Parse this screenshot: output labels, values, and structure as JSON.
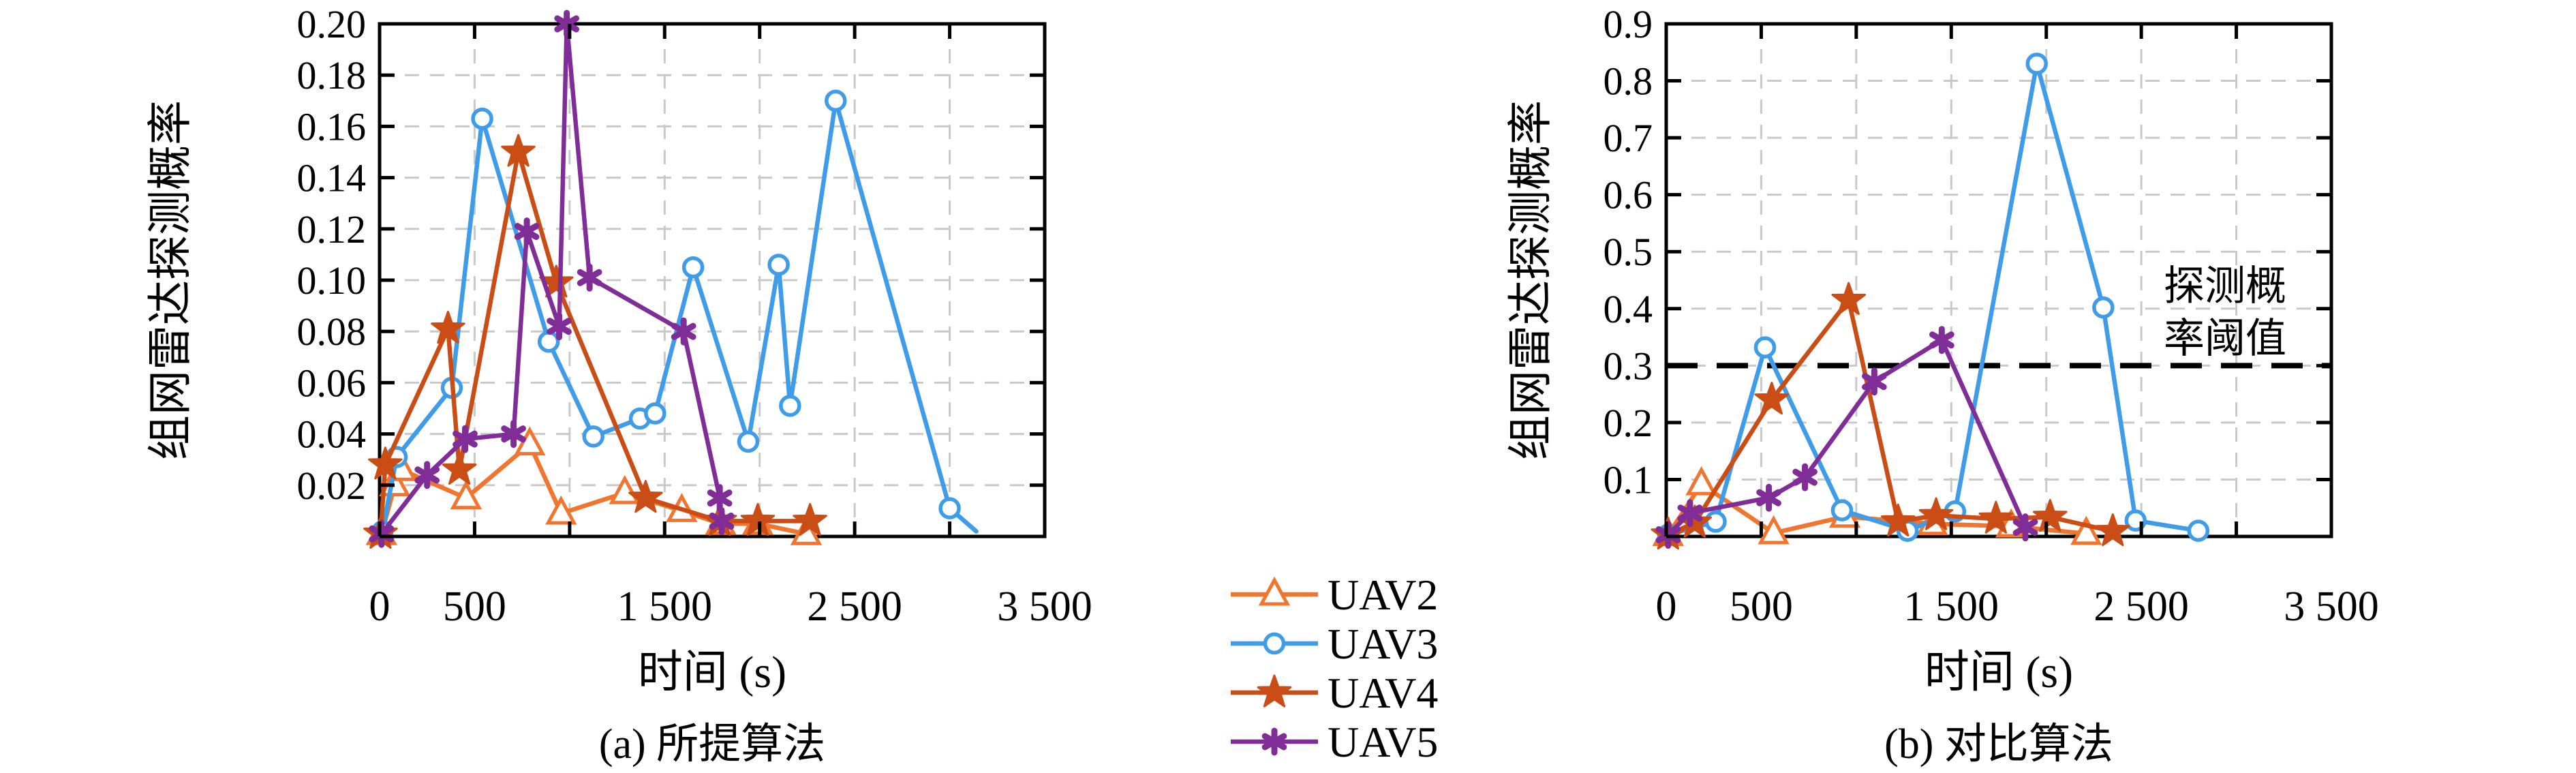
{
  "colors": {
    "UAV2": "#F2752F",
    "UAV3": "#3E9CE9",
    "UAV4": "#CB4D16",
    "UAV5": "#802D97",
    "grid": "#c9c9c9",
    "axis": "#000000",
    "threshold": "#000000"
  },
  "markers": {
    "UAV2": "triangle",
    "UAV3": "circle",
    "UAV4": "star",
    "UAV5": "asterisk"
  },
  "legend": {
    "entries": [
      {
        "label": "UAV2"
      },
      {
        "label": "UAV3"
      },
      {
        "label": "UAV4"
      },
      {
        "label": "UAV5"
      }
    ]
  },
  "chart_data": [
    {
      "id": "a",
      "type": "line",
      "caption": "(a) 所提算法",
      "xlabel": "时间 (s)",
      "ylabel": "组网雷达探测概率",
      "xlim": [
        0,
        3500
      ],
      "ylim": [
        0,
        0.2
      ],
      "grid": true,
      "xticks": [
        {
          "v": 0,
          "label": "0"
        },
        {
          "v": 500,
          "label": "500"
        },
        {
          "v": 1000,
          "label": ""
        },
        {
          "v": 1500,
          "label": "1 500"
        },
        {
          "v": 2000,
          "label": ""
        },
        {
          "v": 2500,
          "label": "2 500"
        },
        {
          "v": 3000,
          "label": ""
        },
        {
          "v": 3500,
          "label": "3 500"
        }
      ],
      "yticks": [
        {
          "v": 0,
          "label": ""
        },
        {
          "v": 0.02,
          "label": "0.02"
        },
        {
          "v": 0.04,
          "label": "0.04"
        },
        {
          "v": 0.06,
          "label": "0.06"
        },
        {
          "v": 0.08,
          "label": "0.08"
        },
        {
          "v": 0.1,
          "label": "0.10"
        },
        {
          "v": 0.12,
          "label": "0.12"
        },
        {
          "v": 0.14,
          "label": "0.14"
        },
        {
          "v": 0.16,
          "label": "0.16"
        },
        {
          "v": 0.18,
          "label": "0.18"
        },
        {
          "v": 0.2,
          "label": "0.20"
        }
      ],
      "series": [
        {
          "name": "UAV2",
          "points": [
            [
              10,
              0.001
            ],
            [
              80,
              0.02
            ],
            [
              115,
              0.026
            ],
            [
              455,
              0.015
            ],
            [
              790,
              0.036
            ],
            [
              955,
              0.009
            ],
            [
              1290,
              0.017
            ],
            [
              1590,
              0.01
            ],
            [
              1795,
              0.005
            ],
            [
              1990,
              0.005
            ],
            [
              2245,
              0.001
            ]
          ]
        },
        {
          "name": "UAV3",
          "points": [
            [
              15,
              0.002
            ],
            [
              90,
              0.031
            ],
            [
              380,
              0.058
            ],
            [
              540,
              0.163
            ],
            [
              890,
              0.076
            ],
            [
              1125,
              0.039
            ],
            [
              1370,
              0.046
            ],
            [
              1450,
              0.048
            ],
            [
              1650,
              0.105
            ],
            [
              1940,
              0.037
            ],
            [
              2100,
              0.106
            ],
            [
              2160,
              0.051
            ],
            [
              2400,
              0.17
            ],
            [
              3000,
              0.011
            ]
          ],
          "tail": [
            [
              3140,
              0.002
            ]
          ]
        },
        {
          "name": "UAV4",
          "points": [
            [
              5,
              0.001
            ],
            [
              30,
              0.028
            ],
            [
              360,
              0.081
            ],
            [
              420,
              0.026
            ],
            [
              730,
              0.15
            ],
            [
              930,
              0.099
            ],
            [
              1400,
              0.015
            ],
            [
              1790,
              0.006
            ],
            [
              1990,
              0.006
            ],
            [
              2265,
              0.006
            ]
          ]
        },
        {
          "name": "UAV5",
          "points": [
            [
              10,
              0.001
            ],
            [
              250,
              0.024
            ],
            [
              450,
              0.038
            ],
            [
              705,
              0.04
            ],
            [
              775,
              0.119
            ],
            [
              945,
              0.082
            ],
            [
              985,
              0.2
            ],
            [
              1105,
              0.101
            ],
            [
              1600,
              0.08
            ],
            [
              1790,
              0.015
            ],
            [
              1800,
              0.006
            ]
          ]
        }
      ]
    },
    {
      "id": "b",
      "type": "line",
      "caption": "(b) 对比算法",
      "xlabel": "时间 (s)",
      "ylabel": "组网雷达探测概率",
      "xlim": [
        0,
        3500
      ],
      "ylim": [
        0,
        0.9
      ],
      "grid": true,
      "threshold": {
        "value": 0.3,
        "label_lines": [
          "探测概",
          "率阈值"
        ]
      },
      "xticks": [
        {
          "v": 0,
          "label": "0"
        },
        {
          "v": 500,
          "label": "500"
        },
        {
          "v": 1000,
          "label": ""
        },
        {
          "v": 1500,
          "label": "1 500"
        },
        {
          "v": 2000,
          "label": ""
        },
        {
          "v": 2500,
          "label": "2 500"
        },
        {
          "v": 3000,
          "label": ""
        },
        {
          "v": 3500,
          "label": "3 500"
        }
      ],
      "yticks": [
        {
          "v": 0,
          "label": ""
        },
        {
          "v": 0.1,
          "label": "0.1"
        },
        {
          "v": 0.2,
          "label": "0.2"
        },
        {
          "v": 0.3,
          "label": "0.3"
        },
        {
          "v": 0.4,
          "label": "0.4"
        },
        {
          "v": 0.5,
          "label": "0.5"
        },
        {
          "v": 0.6,
          "label": "0.6"
        },
        {
          "v": 0.7,
          "label": "0.7"
        },
        {
          "v": 0.8,
          "label": "0.8"
        },
        {
          "v": 0.9,
          "label": "0.9"
        }
      ],
      "series": [
        {
          "name": "UAV2",
          "points": [
            [
              10,
              0.003
            ],
            [
              185,
              0.092
            ],
            [
              565,
              0.006
            ],
            [
              940,
              0.035
            ],
            [
              1400,
              0.022
            ],
            [
              1815,
              0.018
            ],
            [
              2210,
              0.005
            ]
          ]
        },
        {
          "name": "UAV3",
          "points": [
            [
              10,
              0.003
            ],
            [
              260,
              0.026
            ],
            [
              520,
              0.332
            ],
            [
              925,
              0.046
            ],
            [
              1270,
              0.01
            ],
            [
              1520,
              0.044
            ],
            [
              1950,
              0.83
            ],
            [
              2300,
              0.402
            ],
            [
              2470,
              0.028
            ],
            [
              2800,
              0.01
            ]
          ]
        },
        {
          "name": "UAV4",
          "points": [
            [
              10,
              0.003
            ],
            [
              150,
              0.024
            ],
            [
              555,
              0.24
            ],
            [
              960,
              0.415
            ],
            [
              1220,
              0.026
            ],
            [
              1420,
              0.037
            ],
            [
              1735,
              0.031
            ],
            [
              2020,
              0.034
            ],
            [
              2350,
              0.009
            ]
          ]
        },
        {
          "name": "UAV5",
          "points": [
            [
              10,
              0.003
            ],
            [
              125,
              0.041
            ],
            [
              540,
              0.068
            ],
            [
              730,
              0.104
            ],
            [
              1095,
              0.272
            ],
            [
              1450,
              0.345
            ],
            [
              1890,
              0.016
            ]
          ]
        }
      ]
    }
  ]
}
